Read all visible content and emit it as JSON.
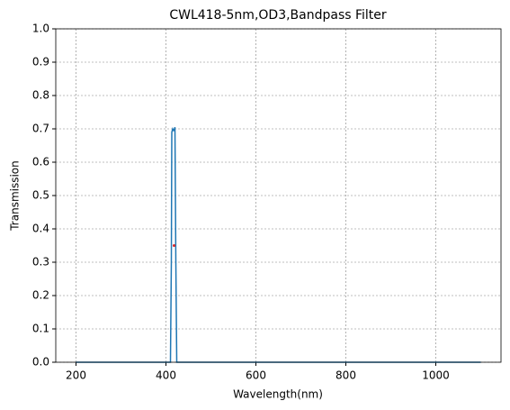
{
  "chart_data": {
    "type": "line",
    "title": "CWL418-5nm,OD3,Bandpass Filter",
    "x_label": "Wavelength(nm)",
    "y_label": "Transmission",
    "x": [
      200,
      410,
      412,
      413,
      415,
      417,
      419,
      420,
      422,
      424,
      1100
    ],
    "values": [
      0,
      0,
      0.3,
      0.69,
      0.7,
      0.695,
      0.7,
      0.705,
      0.3,
      0,
      0
    ],
    "color": "#1f77b4",
    "marker": {
      "x": 418,
      "y": 0.35,
      "color": "#d62728"
    },
    "xlim": [
      155,
      1145
    ],
    "ylim": [
      0,
      1
    ],
    "xticks": [
      200,
      400,
      600,
      800,
      1000
    ],
    "yticks": [
      {
        "value": 0,
        "label": "0.0"
      },
      {
        "value": 0.1,
        "label": "0.1"
      },
      {
        "value": 0.2,
        "label": "0.2"
      },
      {
        "value": 0.3,
        "label": "0.3"
      },
      {
        "value": 0.4,
        "label": "0.4"
      },
      {
        "value": 0.5,
        "label": "0.5"
      },
      {
        "value": 0.6,
        "label": "0.6"
      },
      {
        "value": 0.7,
        "label": "0.7"
      },
      {
        "value": 0.8,
        "label": "0.8"
      },
      {
        "value": 0.9,
        "label": "0.9"
      },
      {
        "value": 1,
        "label": "1.0"
      }
    ],
    "grid": true
  }
}
